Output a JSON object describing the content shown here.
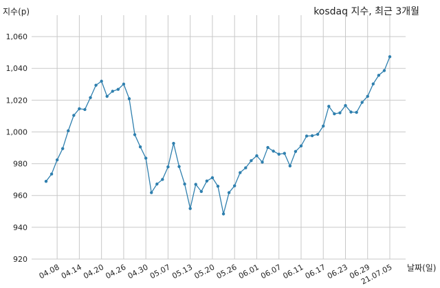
{
  "chart_data": {
    "type": "line",
    "title": "kosdaq 지수, 최근 3개월",
    "ylabel": "지수(p)",
    "xlabel": "날짜(일)",
    "ylim": [
      920,
      1070
    ],
    "yticks": [
      920,
      940,
      960,
      980,
      1000,
      1020,
      1040,
      1060
    ],
    "ytick_labels": [
      "920",
      "940",
      "960",
      "980",
      "1,000",
      "1,020",
      "1,040",
      "1,060"
    ],
    "xtick_labels": [
      "04.08",
      "04.14",
      "04.20",
      "04.26",
      "04.30",
      "05.07",
      "05.13",
      "05.20",
      "05.26",
      "06.01",
      "06.07",
      "06.11",
      "06.17",
      "06.23",
      "06.29",
      "21.07.05"
    ],
    "xtick_index": [
      2,
      6,
      10,
      14,
      18,
      22,
      26,
      30,
      34,
      38,
      42,
      46,
      50,
      54,
      58,
      62
    ],
    "grid": true,
    "color": "#2e7fae",
    "series": [
      {
        "values": [
          968.9,
          973.5,
          982.4,
          989.5,
          1000.7,
          1010.4,
          1014.6,
          1014.1,
          1021.6,
          1029.4,
          1031.9,
          1022.4,
          1025.6,
          1026.8,
          1030.1,
          1020.9,
          998.3,
          990.6,
          983.5,
          961.8,
          967.2,
          970.1,
          978.0,
          992.8,
          978.2,
          967.2,
          951.8,
          967.0,
          962.5,
          969.1,
          971.2,
          965.8,
          948.4,
          961.8,
          966.1,
          974.4,
          977.4,
          981.9,
          985.0,
          981.0,
          990.2,
          987.9,
          986.0,
          986.5,
          978.6,
          987.7,
          991.2,
          997.4,
          997.6,
          998.5,
          1003.7,
          1016.1,
          1011.4,
          1012.0,
          1016.6,
          1012.5,
          1012.3,
          1018.6,
          1022.4,
          1030.2,
          1035.6,
          1038.6,
          1047.3
        ]
      }
    ]
  }
}
